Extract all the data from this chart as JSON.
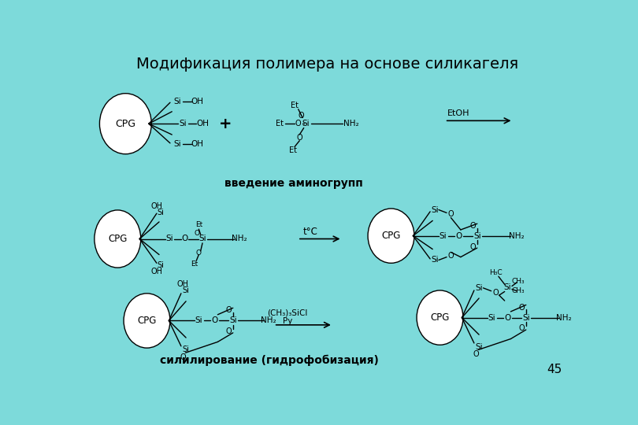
{
  "title": "Модификация полимера на основе силикагеля",
  "bg_color_top": "#5EC8C8",
  "bg_color": "#6ED4D4",
  "text_color": "#000000",
  "line_color": "#000000",
  "circle_color": "#FFFFFF",
  "label_intro": "введение аминогрупп",
  "label_silyl": "силилирование (гидрофобизация)",
  "label_page": "45",
  "cpg": "CPG",
  "etoh": "EtOH",
  "t_c": "t°C",
  "ch3_3_sicl": "(CH₃)₃SiCl",
  "py": "Py",
  "plus": "+",
  "nh2": "NH₂",
  "oh": "OH",
  "si": "Si",
  "o_label": "O",
  "et": "Et",
  "h3c": "H₃C",
  "ch3": "CH₃"
}
